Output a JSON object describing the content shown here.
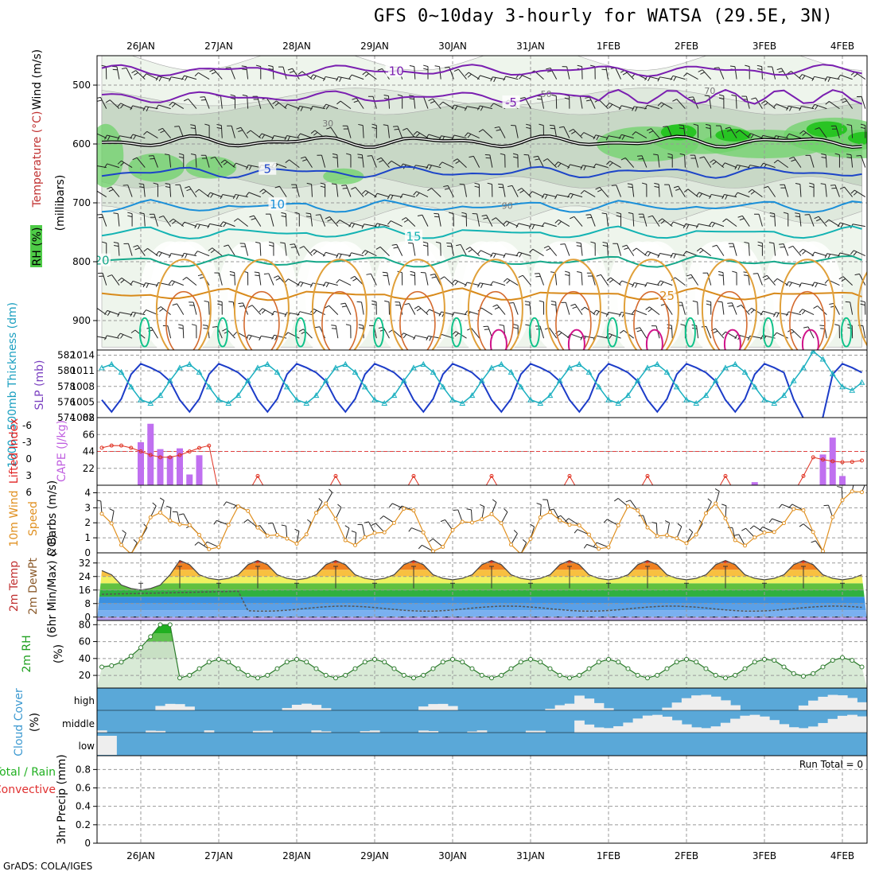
{
  "title": "GFS 0~10day 3-hourly for WATSA (29.5E, 3N)",
  "footer": "GrADS: COLA/IGES",
  "dates": [
    "26JAN",
    "27JAN",
    "28JAN",
    "29JAN",
    "30JAN",
    "31JAN",
    "1FEB",
    "2FEB",
    "3FEB",
    "4FEB"
  ],
  "chart_data": [
    {
      "type": "heatmap",
      "panel": "upper-air",
      "ylabel_wind": "Wind (m/s)",
      "ylabel_temp": "Temperature (°C)",
      "ylabel_rh": "RH (%)",
      "ylabel_units": "(millibars)",
      "yticks": [
        "500",
        "600",
        "700",
        "800",
        "900"
      ],
      "ylim_mb": [
        450,
        950
      ],
      "rh_contour_labels": [
        "30",
        "50",
        "70",
        "90"
      ],
      "temp_contours": [
        {
          "label": "-10",
          "mb": 475
        },
        {
          "label": "-5",
          "mb": 520
        },
        {
          "label": "0",
          "mb": 596
        },
        {
          "label": "5",
          "mb": 648
        },
        {
          "label": "10",
          "mb": 700
        },
        {
          "label": "15",
          "mb": 745
        },
        {
          "label": "20",
          "mb": 793
        },
        {
          "label": "25",
          "mb": 850
        }
      ]
    },
    {
      "type": "line",
      "panel": "slp-thickness",
      "ylabel_thick": "1000~500mb Thickness (dm)",
      "ylabel_slp": "SLP (mb)",
      "thickness_ticks": [
        "574",
        "576",
        "578",
        "580",
        "582"
      ],
      "slp_ticks": [
        "1002",
        "1005",
        "1008",
        "1011",
        "1014"
      ],
      "slp_range": [
        1002,
        1015
      ]
    },
    {
      "type": "bar",
      "panel": "cape-li",
      "ylabel_li": "Lifted Index",
      "ylabel_cape": "CAPE (J/kg)",
      "li_ticks": [
        "-6",
        "-3",
        "0",
        "3",
        "6"
      ],
      "cape_ticks": [
        "22",
        "44",
        "66",
        "88"
      ],
      "cape_bars": [
        {
          "day": 0.0,
          "value": 56
        },
        {
          "day": 0.125,
          "value": 80
        },
        {
          "day": 0.25,
          "value": 47
        },
        {
          "day": 0.375,
          "value": 38
        },
        {
          "day": 0.5,
          "value": 48
        },
        {
          "day": 0.625,
          "value": 14
        },
        {
          "day": 0.75,
          "value": 39
        },
        {
          "day": 7.875,
          "value": 4
        },
        {
          "day": 8.75,
          "value": 40
        },
        {
          "day": 8.875,
          "value": 62
        },
        {
          "day": 9.0,
          "value": 12
        }
      ]
    },
    {
      "type": "line",
      "panel": "wind10m",
      "ylabel": "10m Wind Speed & Barbs (m/s)",
      "yticks": [
        "1",
        "2",
        "3",
        "4"
      ],
      "ylim": [
        0,
        4.5
      ]
    },
    {
      "type": "area",
      "panel": "temp2m",
      "ylabel": "2m Temp 2m DewPt (6hr Min/Max) (°C)",
      "yticks": [
        "0",
        "8",
        "16",
        "24",
        "32"
      ],
      "ylim": [
        -2,
        38
      ]
    },
    {
      "type": "area",
      "panel": "rh2m",
      "ylabel": "2m RH (%)",
      "yticks": [
        "20",
        "40",
        "60",
        "80"
      ],
      "ylim": [
        5,
        85
      ]
    },
    {
      "type": "area",
      "panel": "cloud",
      "ylabel": "Cloud Cover (%)",
      "yticks": [
        "low",
        "middle",
        "high"
      ]
    },
    {
      "type": "bar",
      "panel": "precip",
      "ylabel_total": "Total / Rain",
      "ylabel_conv": "Convective",
      "ylabel_units": "3hr Precip (mm)",
      "yticks": [
        "0",
        "0.2",
        "0.4",
        "0.6",
        "0.8"
      ],
      "ylim": [
        0,
        0.95
      ],
      "annotation": "Run Total = 0"
    }
  ]
}
